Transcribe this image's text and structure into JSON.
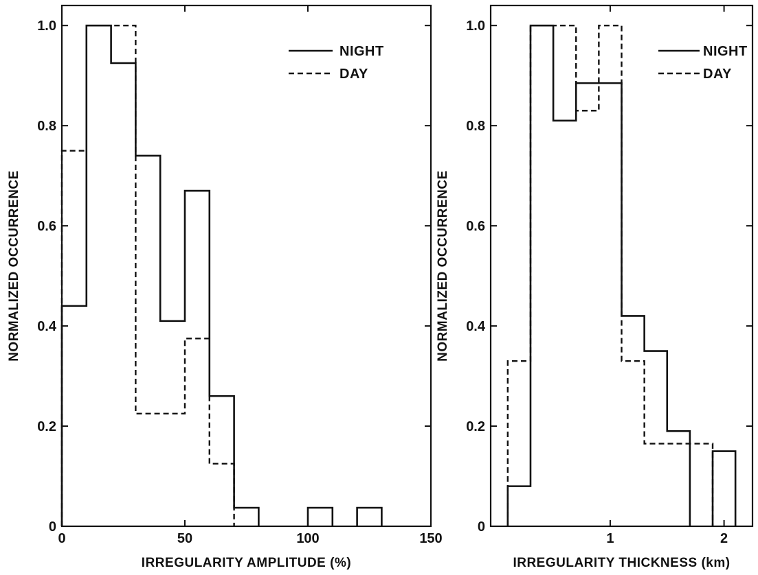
{
  "chart_data": [
    {
      "type": "step",
      "xlabel": "IRREGULARITY AMPLITUDE (%)",
      "ylabel": "NORMALIZED OCCURRENCE",
      "xlim": [
        0,
        150
      ],
      "ylim": [
        0,
        1.04
      ],
      "xticks": [
        0,
        50,
        100,
        150
      ],
      "xtick_labels": [
        "0",
        "50",
        "100",
        "150"
      ],
      "yticks": [
        0,
        0.2,
        0.4,
        0.6,
        0.8,
        1.0
      ],
      "ytick_labels": [
        "0",
        "0.2",
        "0.4",
        "0.6",
        "0.8",
        "1.0"
      ],
      "legend_position": "top-right",
      "series": [
        {
          "name": "NIGHT",
          "style": "solid",
          "bins": [
            {
              "x0": 0,
              "x1": 10,
              "y": 0.44
            },
            {
              "x0": 10,
              "x1": 20,
              "y": 1.0
            },
            {
              "x0": 20,
              "x1": 30,
              "y": 0.925
            },
            {
              "x0": 30,
              "x1": 40,
              "y": 0.74
            },
            {
              "x0": 40,
              "x1": 50,
              "y": 0.41
            },
            {
              "x0": 50,
              "x1": 60,
              "y": 0.67
            },
            {
              "x0": 60,
              "x1": 70,
              "y": 0.26
            },
            {
              "x0": 70,
              "x1": 80,
              "y": 0.037
            },
            {
              "x0": 100,
              "x1": 110,
              "y": 0.037
            },
            {
              "x0": 120,
              "x1": 130,
              "y": 0.037
            }
          ]
        },
        {
          "name": "DAY",
          "style": "dashed",
          "bins": [
            {
              "x0": 0,
              "x1": 10,
              "y": 0.75
            },
            {
              "x0": 10,
              "x1": 30,
              "y": 1.0
            },
            {
              "x0": 30,
              "x1": 50,
              "y": 0.225
            },
            {
              "x0": 50,
              "x1": 60,
              "y": 0.375
            },
            {
              "x0": 60,
              "x1": 70,
              "y": 0.125
            }
          ]
        }
      ]
    },
    {
      "type": "step",
      "xlabel": "IRREGULARITY THICKNESS (km)",
      "ylabel": "NORMALIZED OCCURRENCE",
      "xlim": [
        -0.05,
        2.25
      ],
      "ylim": [
        0,
        1.04
      ],
      "xticks": [
        1,
        2
      ],
      "xtick_labels": [
        "1",
        "2"
      ],
      "yticks": [
        0,
        0.2,
        0.4,
        0.6,
        0.8,
        1.0
      ],
      "ytick_labels": [
        "0",
        "0.2",
        "0.4",
        "0.6",
        "0.8",
        "1.0"
      ],
      "legend_position": "top-right",
      "series": [
        {
          "name": "NIGHT",
          "style": "solid",
          "bins": [
            {
              "x0": 0.1,
              "x1": 0.3,
              "y": 0.08
            },
            {
              "x0": 0.3,
              "x1": 0.5,
              "y": 1.0
            },
            {
              "x0": 0.5,
              "x1": 0.7,
              "y": 0.81
            },
            {
              "x0": 0.7,
              "x1": 1.1,
              "y": 0.885
            },
            {
              "x0": 1.1,
              "x1": 1.3,
              "y": 0.42
            },
            {
              "x0": 1.3,
              "x1": 1.5,
              "y": 0.35
            },
            {
              "x0": 1.5,
              "x1": 1.7,
              "y": 0.19
            },
            {
              "x0": 1.9,
              "x1": 2.1,
              "y": 0.15
            }
          ]
        },
        {
          "name": "DAY",
          "style": "dashed",
          "bins": [
            {
              "x0": 0.1,
              "x1": 0.3,
              "y": 0.33
            },
            {
              "x0": 0.3,
              "x1": 0.7,
              "y": 1.0
            },
            {
              "x0": 0.7,
              "x1": 0.9,
              "y": 0.83
            },
            {
              "x0": 0.9,
              "x1": 1.1,
              "y": 1.0
            },
            {
              "x0": 1.1,
              "x1": 1.3,
              "y": 0.33
            },
            {
              "x0": 1.3,
              "x1": 1.9,
              "y": 0.165
            }
          ]
        }
      ]
    }
  ]
}
